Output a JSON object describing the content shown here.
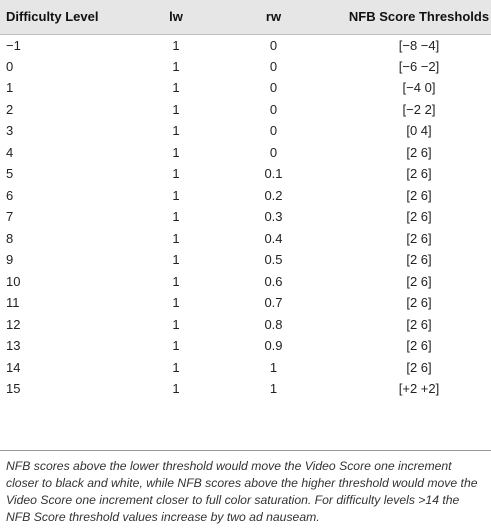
{
  "table": {
    "headers": {
      "level": "Difficulty Level",
      "lw": "lw",
      "rw": "rw",
      "nfb": "NFB Score Thresholds"
    },
    "rows": [
      {
        "level": "−1",
        "lw": "1",
        "rw": "0",
        "nfb": "[−8 −4]"
      },
      {
        "level": "0",
        "lw": "1",
        "rw": "0",
        "nfb": "[−6 −2]"
      },
      {
        "level": "1",
        "lw": "1",
        "rw": "0",
        "nfb": "[−4 0]"
      },
      {
        "level": "2",
        "lw": "1",
        "rw": "0",
        "nfb": "[−2 2]"
      },
      {
        "level": "3",
        "lw": "1",
        "rw": "0",
        "nfb": "[0 4]"
      },
      {
        "level": "4",
        "lw": "1",
        "rw": "0",
        "nfb": "[2 6]"
      },
      {
        "level": "5",
        "lw": "1",
        "rw": "0.1",
        "nfb": "[2 6]"
      },
      {
        "level": "6",
        "lw": "1",
        "rw": "0.2",
        "nfb": "[2 6]"
      },
      {
        "level": "7",
        "lw": "1",
        "rw": "0.3",
        "nfb": "[2 6]"
      },
      {
        "level": "8",
        "lw": "1",
        "rw": "0.4",
        "nfb": "[2 6]"
      },
      {
        "level": "9",
        "lw": "1",
        "rw": "0.5",
        "nfb": "[2 6]"
      },
      {
        "level": "10",
        "lw": "1",
        "rw": "0.6",
        "nfb": "[2 6]"
      },
      {
        "level": "11",
        "lw": "1",
        "rw": "0.7",
        "nfb": "[2 6]"
      },
      {
        "level": "12",
        "lw": "1",
        "rw": "0.8",
        "nfb": "[2 6]"
      },
      {
        "level": "13",
        "lw": "1",
        "rw": "0.9",
        "nfb": "[2 6]"
      },
      {
        "level": "14",
        "lw": "1",
        "rw": "1",
        "nfb": "[2 6]"
      },
      {
        "level": "15",
        "lw": "1",
        "rw": "1",
        "nfb": "[+2 +2]"
      }
    ]
  },
  "footnote": "NFB scores above the lower threshold would move the Video Score one increment closer to black and white, while NFB scores above the higher threshold would move the Video Score one increment closer to full color saturation. For difficulty levels >14 the NFB Score threshold values increase by two ad nauseam.",
  "colors": {
    "header_background": "#e6e6e6",
    "text": "#222222"
  }
}
